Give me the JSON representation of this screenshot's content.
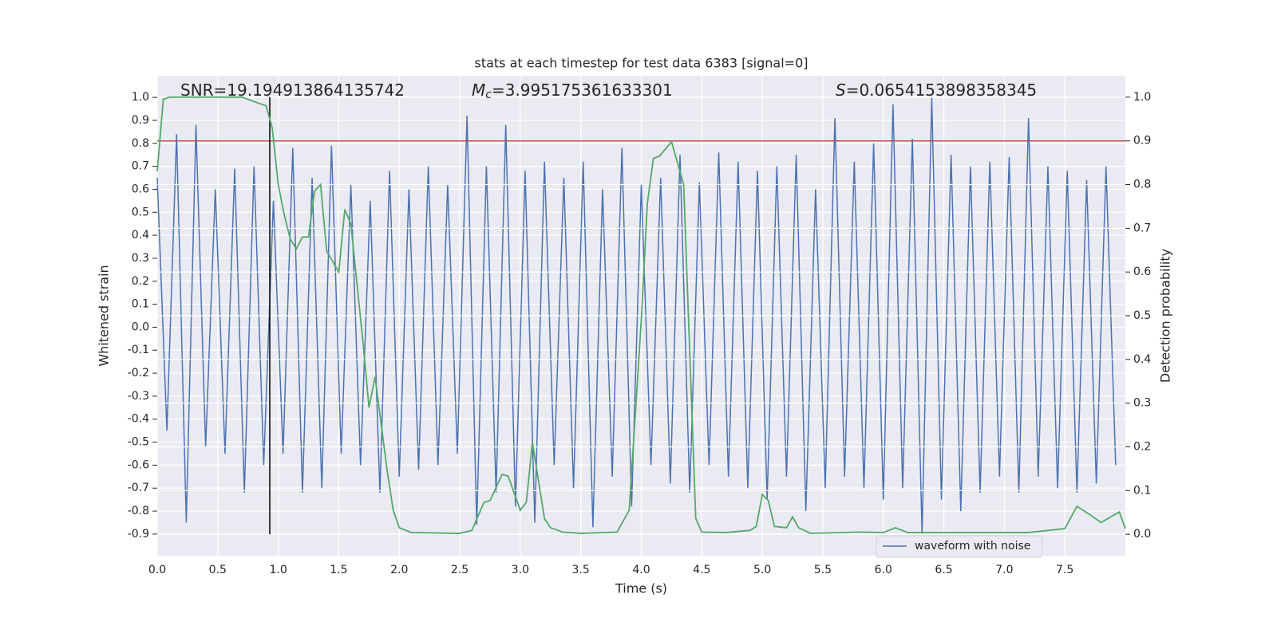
{
  "chart_data": {
    "type": "line",
    "title": "stats at each timestep for test data 6383 [signal=0]",
    "xlabel": "Time (s)",
    "ylabel": "Whitened strain",
    "y2label": "Detection probability",
    "annotations": [
      {
        "text": "SNR=19.194913864135742"
      },
      {
        "symbol": "M",
        "subscript": "c",
        "text": "=3.995175361633301"
      },
      {
        "symbol": "S",
        "text": "=0.0654153898358345"
      }
    ],
    "xlim": [
      0,
      8.0
    ],
    "ylim": [
      -0.994,
      1.094
    ],
    "y2lim": [
      -0.049,
      1.049
    ],
    "xticks": [
      {
        "value": 0,
        "label": "0.0"
      },
      0.5,
      {
        "value": 1,
        "label": "1.0"
      },
      1.5,
      {
        "value": 2,
        "label": "2.0"
      },
      2.5,
      {
        "value": 3,
        "label": "3.0"
      },
      3.5,
      {
        "value": 4,
        "label": "4.0"
      },
      4.5,
      {
        "value": 5,
        "label": "5.0"
      },
      5.5,
      {
        "value": 6,
        "label": "6.0"
      },
      6.5,
      {
        "value": 7,
        "label": "7.0"
      },
      7.5
    ],
    "yticks": [
      -0.9,
      -0.8,
      -0.7,
      -0.6,
      -0.5,
      -0.4,
      -0.3,
      -0.2,
      -0.1,
      {
        "value": 0,
        "label": "0.0"
      },
      0.1,
      0.2,
      0.3,
      0.4,
      0.5,
      0.6,
      0.7,
      0.8,
      0.9,
      {
        "value": 1,
        "label": "1.0"
      }
    ],
    "y2ticks": [
      {
        "value": 0,
        "label": "0.0"
      },
      0.1,
      0.2,
      0.3,
      0.4,
      0.5,
      0.6,
      0.7,
      0.8,
      0.9,
      {
        "value": 1,
        "label": "1.0"
      }
    ],
    "grid": true,
    "legend": "lower right",
    "series": [
      {
        "name": "waveform with noise",
        "color": "#4c72b0",
        "x": [
          0,
          0.08,
          0.16,
          0.24,
          0.32,
          0.4,
          0.48,
          0.56,
          0.64,
          0.72,
          0.8,
          0.88,
          0.96,
          1.04,
          1.12,
          1.2,
          1.28,
          1.36,
          1.44,
          1.52,
          1.6,
          1.68,
          1.76,
          1.84,
          1.92,
          2.0,
          2.08,
          2.16,
          2.24,
          2.32,
          2.4,
          2.48,
          2.56,
          2.64,
          2.72,
          2.8,
          2.88,
          2.96,
          3.04,
          3.12,
          3.2,
          3.28,
          3.36,
          3.44,
          3.52,
          3.6,
          3.68,
          3.76,
          3.84,
          3.92,
          4.0,
          4.08,
          4.16,
          4.24,
          4.32,
          4.4,
          4.48,
          4.56,
          4.64,
          4.72,
          4.8,
          4.88,
          4.96,
          5.04,
          5.12,
          5.2,
          5.28,
          5.36,
          5.44,
          5.52,
          5.6,
          5.68,
          5.76,
          5.84,
          5.92,
          6.0,
          6.08,
          6.16,
          6.24,
          6.32,
          6.4,
          6.48,
          6.56,
          6.64,
          6.72,
          6.8,
          6.88,
          6.96,
          7.04,
          7.12,
          7.2,
          7.28,
          7.36,
          7.44,
          7.52,
          7.6,
          7.68,
          7.76,
          7.84,
          7.92
        ],
        "values": [
          0.65,
          -0.45,
          0.84,
          -0.85,
          0.88,
          -0.52,
          0.6,
          -0.55,
          0.69,
          -0.72,
          0.7,
          -0.6,
          0.55,
          -0.55,
          0.78,
          -0.72,
          0.65,
          -0.7,
          0.79,
          -0.55,
          0.62,
          -0.6,
          0.55,
          -0.72,
          0.68,
          -0.65,
          0.6,
          -0.62,
          0.7,
          -0.6,
          0.62,
          -0.55,
          0.92,
          -0.86,
          0.7,
          -0.72,
          0.88,
          -0.78,
          0.68,
          -0.85,
          0.72,
          -0.6,
          0.65,
          -0.7,
          0.72,
          -0.87,
          0.6,
          -0.65,
          0.78,
          -0.78,
          0.62,
          -0.6,
          0.65,
          -0.68,
          0.75,
          -0.72,
          0.63,
          -0.6,
          0.76,
          -0.65,
          0.72,
          -0.7,
          0.68,
          -0.75,
          0.7,
          -0.65,
          0.75,
          -0.8,
          0.6,
          -0.7,
          0.91,
          -0.65,
          0.72,
          -0.7,
          0.8,
          -0.75,
          0.97,
          -0.7,
          0.82,
          -0.9,
          1.0,
          -0.75,
          0.75,
          -0.8,
          0.7,
          -0.72,
          0.72,
          -0.65,
          0.74,
          -0.72,
          0.91,
          -0.65,
          0.7,
          -0.7,
          0.68,
          -0.72,
          0.64,
          -0.68,
          0.7,
          -0.6
        ]
      },
      {
        "color": "#55a868",
        "axis": "y2",
        "x": [
          0,
          0.05,
          0.1,
          0.7,
          0.8,
          0.9,
          0.95,
          1.0,
          1.05,
          1.1,
          1.15,
          1.2,
          1.25,
          1.3,
          1.35,
          1.4,
          1.5,
          1.55,
          1.6,
          1.7,
          1.75,
          1.8,
          1.9,
          1.95,
          2.0,
          2.1,
          2.5,
          2.6,
          2.7,
          2.75,
          2.85,
          2.9,
          3.0,
          3.05,
          3.1,
          3.2,
          3.25,
          3.35,
          3.5,
          3.8,
          3.9,
          4.0,
          4.05,
          4.1,
          4.15,
          4.25,
          4.35,
          4.45,
          4.5,
          4.7,
          4.9,
          4.95,
          5.0,
          5.05,
          5.1,
          5.2,
          5.25,
          5.3,
          5.4,
          5.8,
          6.0,
          6.1,
          6.2,
          7.0,
          7.2,
          7.5,
          7.6,
          7.7,
          7.8,
          7.95,
          8.0
        ],
        "values": [
          0.83,
          0.995,
          1.0,
          1.0,
          0.99,
          0.98,
          0.93,
          0.8,
          0.73,
          0.675,
          0.653,
          0.68,
          0.68,
          0.785,
          0.8,
          0.648,
          0.6,
          0.743,
          0.71,
          0.44,
          0.29,
          0.36,
          0.146,
          0.055,
          0.015,
          0.004,
          0.002,
          0.009,
          0.073,
          0.077,
          0.137,
          0.133,
          0.055,
          0.073,
          0.21,
          0.036,
          0.015,
          0.005,
          0.002,
          0.005,
          0.055,
          0.49,
          0.757,
          0.86,
          0.865,
          0.898,
          0.8,
          0.036,
          0.005,
          0.004,
          0.009,
          0.018,
          0.091,
          0.077,
          0.018,
          0.015,
          0.04,
          0.015,
          0.002,
          0.005,
          0.004,
          0.015,
          0.004,
          0.004,
          0.004,
          0.013,
          0.064,
          0.046,
          0.027,
          0.051,
          0.013
        ]
      }
    ],
    "hline": {
      "y": 0.9,
      "axis": "y2",
      "color": "#c44e52"
    },
    "vline": {
      "x": 0.93,
      "ymin": 0,
      "ymax": 1,
      "axis": "y2",
      "color": "#000000"
    }
  }
}
